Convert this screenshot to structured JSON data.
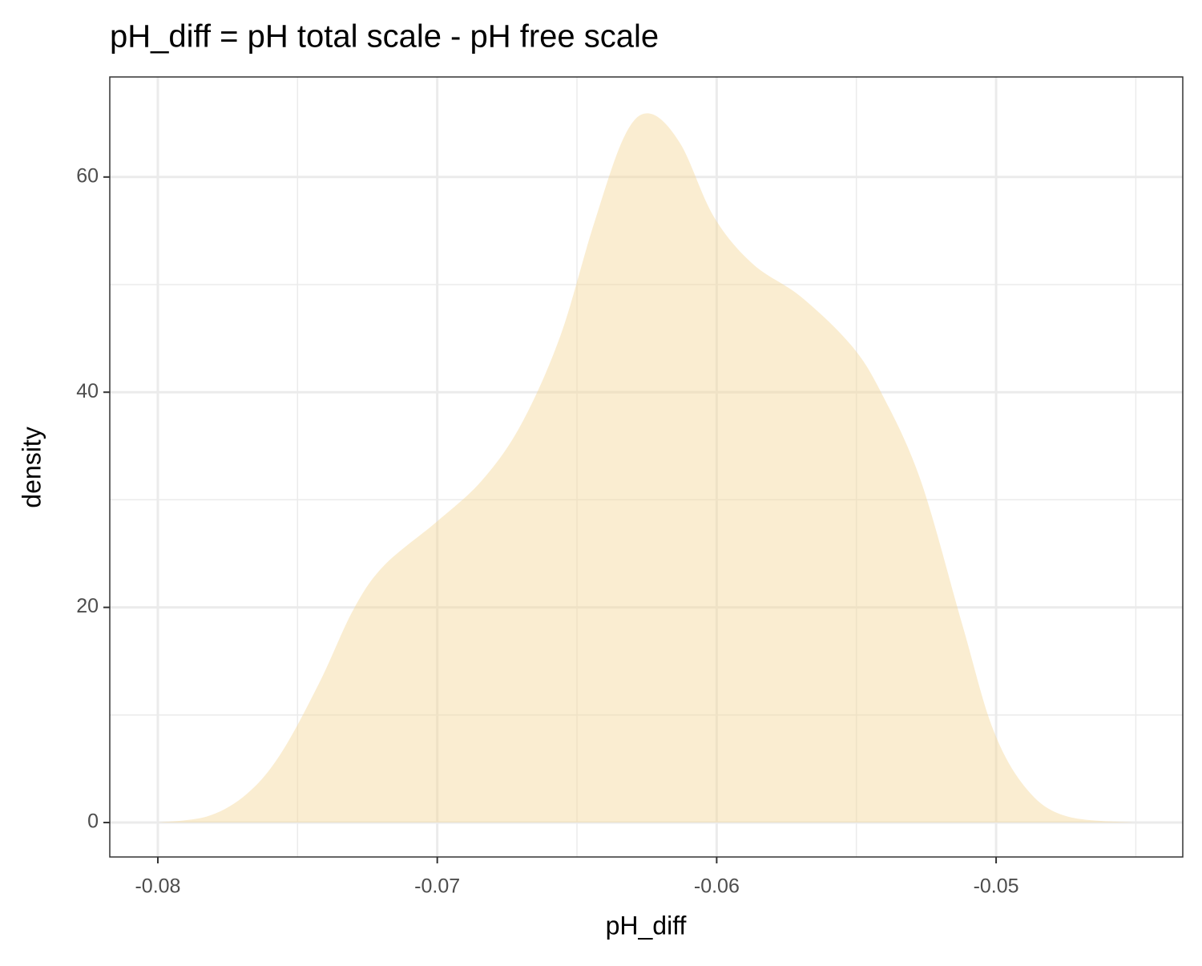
{
  "chart_data": {
    "type": "density",
    "title": "pH_diff = pH total scale - pH free scale",
    "x_label": "pH_diff",
    "y_label": "density",
    "x": [
      -0.08,
      -0.0782,
      -0.0768,
      -0.0756,
      -0.0742,
      -0.073,
      -0.0719,
      -0.07,
      -0.0684,
      -0.067,
      -0.0656,
      -0.0644,
      -0.0633,
      -0.0624,
      -0.0613,
      -0.0601,
      -0.0587,
      -0.057,
      -0.0552,
      -0.0541,
      -0.0527,
      -0.0512,
      -0.0501,
      -0.0489,
      -0.0475,
      -0.0451
    ],
    "values": [
      0,
      0.6,
      2.7,
      6.4,
      13.1,
      19.8,
      23.9,
      28.0,
      31.8,
      37.0,
      45.2,
      55.6,
      63.8,
      65.9,
      63.1,
      56.3,
      51.9,
      48.9,
      44.4,
      39.9,
      31.8,
      18.3,
      8.6,
      3.1,
      0.6,
      0
    ],
    "color": "#f5d89a",
    "xlim": [
      -0.08172,
      -0.04332
    ],
    "ylim": [
      -3.2,
      69.3
    ],
    "xticks": [
      -0.08,
      -0.07,
      -0.06,
      -0.05
    ],
    "yticks": [
      0,
      20,
      40,
      60
    ],
    "grid": true
  }
}
